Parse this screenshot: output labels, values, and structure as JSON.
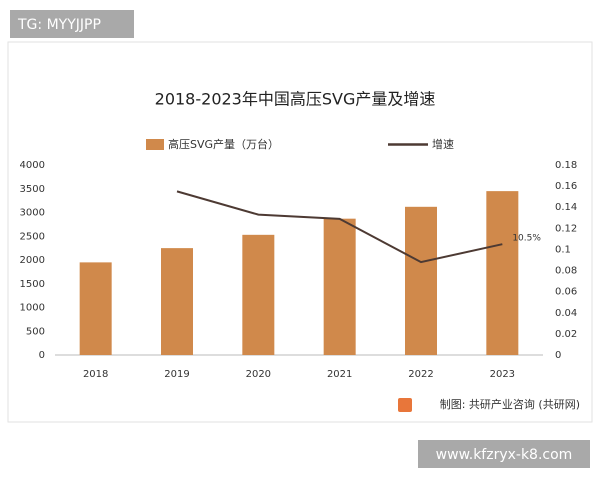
{
  "overlay": {
    "top_left": "TG: MYYJJPP",
    "bottom_right": "www.kfzryx-k8.com"
  },
  "chart_data": {
    "type": "bar",
    "title": "2018-2023年中国高压SVG产量及增速",
    "categories": [
      "2018",
      "2019",
      "2020",
      "2021",
      "2022",
      "2023"
    ],
    "series": [
      {
        "name": "高压SVG产量（万台）",
        "type": "bar",
        "color": "#d0894b",
        "axis": "y",
        "values": [
          1950,
          2250,
          2530,
          2870,
          3120,
          3450
        ]
      },
      {
        "name": "增速",
        "type": "line",
        "color": "#4d3a33",
        "axis": "y2",
        "values": [
          null,
          0.155,
          0.133,
          0.129,
          0.088,
          0.105
        ],
        "value_labels": [
          null,
          null,
          null,
          null,
          null,
          "10.5%"
        ]
      }
    ],
    "ylim": [
      0,
      4000
    ],
    "yticks": [
      0,
      500,
      1000,
      1500,
      2000,
      2500,
      3000,
      3500,
      4000
    ],
    "y2lim": [
      0,
      0.18
    ],
    "y2ticks": [
      0,
      0.02,
      0.04,
      0.06,
      0.08,
      0.1,
      0.12,
      0.14,
      0.16,
      0.18
    ],
    "grid": false,
    "legend": "top",
    "source": "制图: 共研产业咨询 (共研网)"
  }
}
